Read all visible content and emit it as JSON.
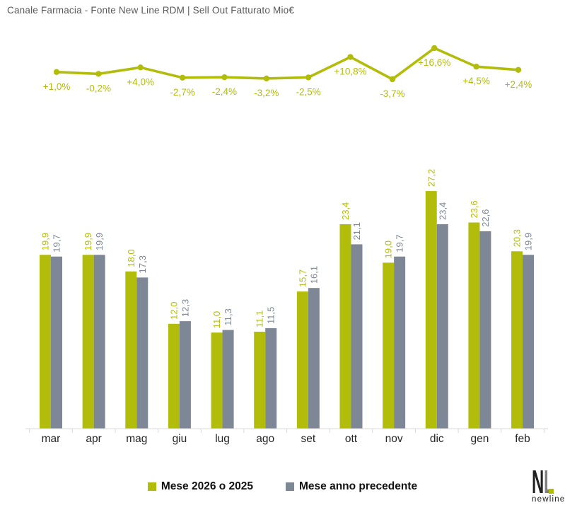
{
  "header": {
    "title": "Canale Farmacia - Fonte New Line RDM | Sell Out Fatturato Mio€"
  },
  "colors": {
    "current": "#b2bd0b",
    "previous": "#7e8795",
    "axis": "#d9d9d9",
    "month_label": "#262626",
    "title": "#595959",
    "legend_text": "#111111",
    "logo_n": "#222222",
    "logo_l": "#818181"
  },
  "chart_data": [
    {
      "type": "line",
      "name": "variazione-percentuale-yoy",
      "x": [
        "mar",
        "apr",
        "mag",
        "giu",
        "lug",
        "ago",
        "set",
        "ott",
        "nov",
        "dic",
        "gen",
        "feb"
      ],
      "values": [
        1.0,
        -0.2,
        4.0,
        -2.7,
        -2.4,
        -3.2,
        -2.5,
        10.8,
        -3.7,
        16.6,
        4.5,
        2.4
      ],
      "point_labels": [
        "+1,0%",
        "-0,2%",
        "+4,0%",
        "-2,7%",
        "-2,4%",
        "-3,2%",
        "-2,5%",
        "+10,8%",
        "-3,7%",
        "+16,6%",
        "+4,5%",
        "+2,4%"
      ],
      "color": "#b2bd0b",
      "markers": true,
      "axes": "hidden",
      "grid": false
    },
    {
      "type": "bar",
      "categories": [
        "mar",
        "apr",
        "mag",
        "giu",
        "lug",
        "ago",
        "set",
        "ott",
        "nov",
        "dic",
        "gen",
        "feb"
      ],
      "series": [
        {
          "name": "Mese 2026 o 2025",
          "values": [
            19.9,
            19.9,
            18.0,
            12.0,
            11.0,
            11.1,
            15.7,
            23.4,
            19.0,
            27.2,
            23.6,
            20.3
          ],
          "labels": [
            "19,9",
            "19,9",
            "18,0",
            "12,0",
            "11,0",
            "11,1",
            "15,7",
            "23,4",
            "19,0",
            "27,2",
            "23,6",
            "20,3"
          ],
          "color": "#b2bd0b"
        },
        {
          "name": "Mese anno precedente",
          "values": [
            19.7,
            19.9,
            17.3,
            12.3,
            11.3,
            11.5,
            16.1,
            21.1,
            19.7,
            23.4,
            22.6,
            19.9
          ],
          "labels": [
            "19,7",
            "19,9",
            "17,3",
            "12,3",
            "11,3",
            "11,5",
            "16,1",
            "21,1",
            "19,7",
            "23,4",
            "22,6",
            "19,9"
          ],
          "color": "#7e8795"
        }
      ],
      "ylim": [
        0,
        30
      ],
      "grid": false,
      "value_label_rotation": -90,
      "legend_position": "bottom"
    }
  ],
  "legend": {
    "items": [
      {
        "label": "Mese 2026 o 2025",
        "color": "#b2bd0b"
      },
      {
        "label": "Mese anno precedente",
        "color": "#7e8795"
      }
    ]
  },
  "logo": {
    "n": "N",
    "l": "L",
    "word": "newline"
  }
}
